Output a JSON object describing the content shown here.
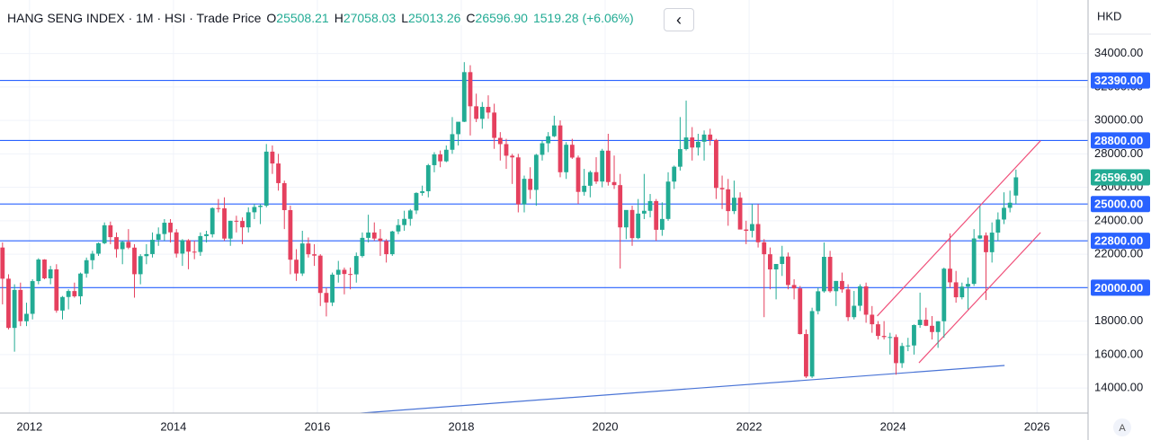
{
  "chart_data": {
    "type": "candlestick",
    "legend": {
      "symbol": "HANG SENG INDEX · 1M · HSI · Trade Price",
      "open_label": "O",
      "open": 25508.21,
      "high_label": "H",
      "high": 27058.03,
      "low_label": "L",
      "low": 25013.26,
      "close_label": "C",
      "close": {
        "value": 26596.9,
        "label": "26596.90"
      },
      "change": "1519.28 (+6.06%)"
    },
    "currency": "HKD",
    "auto_button": "A",
    "up_color": "#22ab94",
    "down_color": "#e5405e",
    "x": [
      "2011-08",
      "2011-09",
      "2011-10",
      "2011-11",
      "2011-12",
      "2012-01",
      "2012-02",
      "2012-03",
      "2012-04",
      "2012-05",
      "2012-06",
      "2012-07",
      "2012-08",
      "2012-09",
      "2012-10",
      "2012-11",
      "2012-12",
      "2013-01",
      "2013-02",
      "2013-03",
      "2013-04",
      "2013-05",
      "2013-06",
      "2013-07",
      "2013-08",
      "2013-09",
      "2013-10",
      "2013-11",
      "2013-12",
      "2014-01",
      "2014-02",
      "2014-03",
      "2014-04",
      "2014-05",
      "2014-06",
      "2014-07",
      "2014-08",
      "2014-09",
      "2014-10",
      "2014-11",
      "2014-12",
      "2015-01",
      "2015-02",
      "2015-03",
      "2015-04",
      "2015-05",
      "2015-06",
      "2015-07",
      "2015-08",
      "2015-09",
      "2015-10",
      "2015-11",
      "2015-12",
      "2016-01",
      "2016-02",
      "2016-03",
      "2016-04",
      "2016-05",
      "2016-06",
      "2016-07",
      "2016-08",
      "2016-09",
      "2016-10",
      "2016-11",
      "2016-12",
      "2017-01",
      "2017-02",
      "2017-03",
      "2017-04",
      "2017-05",
      "2017-06",
      "2017-07",
      "2017-08",
      "2017-09",
      "2017-10",
      "2017-11",
      "2017-12",
      "2018-01",
      "2018-02",
      "2018-03",
      "2018-04",
      "2018-05",
      "2018-06",
      "2018-07",
      "2018-08",
      "2018-09",
      "2018-10",
      "2018-11",
      "2018-12",
      "2019-01",
      "2019-02",
      "2019-03",
      "2019-04",
      "2019-05",
      "2019-06",
      "2019-07",
      "2019-08",
      "2019-09",
      "2019-10",
      "2019-11",
      "2019-12",
      "2020-01",
      "2020-02",
      "2020-03",
      "2020-04",
      "2020-05",
      "2020-06",
      "2020-07",
      "2020-08",
      "2020-09",
      "2020-10",
      "2020-11",
      "2020-12",
      "2021-01",
      "2021-02",
      "2021-03",
      "2021-04",
      "2021-05",
      "2021-06",
      "2021-07",
      "2021-08",
      "2021-09",
      "2021-10",
      "2021-11",
      "2021-12",
      "2022-01",
      "2022-02",
      "2022-03",
      "2022-04",
      "2022-05",
      "2022-06",
      "2022-07",
      "2022-08",
      "2022-09",
      "2022-10",
      "2022-11",
      "2022-12",
      "2023-01",
      "2023-02",
      "2023-03",
      "2023-04",
      "2023-05",
      "2023-06",
      "2023-07",
      "2023-08",
      "2023-09",
      "2023-10",
      "2023-11",
      "2023-12",
      "2024-01",
      "2024-02",
      "2024-03",
      "2024-04",
      "2024-05",
      "2024-06",
      "2024-07",
      "2024-08",
      "2024-09",
      "2024-10",
      "2024-11",
      "2024-12",
      "2025-01",
      "2025-02",
      "2025-03",
      "2025-04",
      "2025-05",
      "2025-06",
      "2025-07",
      "2025-08",
      "2025-09"
    ],
    "open": [
      22398,
      20535,
      17592,
      19864,
      17989,
      18434,
      20390,
      21680,
      20556,
      21094,
      18630,
      19441,
      19796,
      19483,
      20840,
      21642,
      22030,
      22657,
      23730,
      23020,
      22300,
      22737,
      22392,
      20803,
      21883,
      22008,
      22860,
      23206,
      23881,
      23306,
      22035,
      22837,
      22151,
      22133,
      23082,
      23191,
      24757,
      24742,
      22933,
      23998,
      23987,
      23605,
      24507,
      24823,
      24901,
      28133,
      27424,
      26250,
      24636,
      21670,
      20846,
      22640,
      21996,
      21914,
      19683,
      19112,
      20777,
      21067,
      20815,
      20794,
      21891,
      22977,
      23297,
      22935,
      22790,
      22001,
      23361,
      23741,
      24112,
      24615,
      25661,
      25765,
      27324,
      27970,
      27554,
      28246,
      29177,
      29919,
      32887,
      30845,
      30093,
      30808,
      30469,
      28955,
      28583,
      27889,
      27789,
      24980,
      26507,
      25846,
      27942,
      28633,
      29051,
      29699,
      26901,
      28543,
      27778,
      25725,
      26092,
      26907,
      26346,
      28190,
      26313,
      26130,
      23603,
      24644,
      22961,
      24427,
      24595,
      25177,
      23459,
      24107,
      26341,
      27231,
      28284,
      28980,
      28378,
      28725,
      29152,
      28828,
      25961,
      25879,
      24576,
      25377,
      23475,
      23398,
      23802,
      22713,
      21997,
      21089,
      21415,
      21860,
      20157,
      19955,
      17223,
      14687,
      18597,
      19781,
      21842,
      19786,
      20400,
      19895,
      18234,
      18916,
      20079,
      18382,
      17810,
      17112,
      17043,
      17047,
      15485,
      16511,
      16541,
      17763,
      18080,
      17719,
      17345,
      17989,
      21134,
      20317,
      19424,
      20060,
      20225,
      22941,
      23120,
      22119,
      23290,
      24072,
      24773,
      25508.21
    ],
    "high": [
      22700,
      20800,
      20200,
      20300,
      19100,
      20500,
      21760,
      21700,
      21300,
      21400,
      19500,
      19900,
      20300,
      20900,
      21800,
      22200,
      22700,
      23900,
      23950,
      23300,
      22800,
      23500,
      22600,
      22000,
      22600,
      23300,
      23600,
      24100,
      24100,
      23500,
      22900,
      22900,
      22800,
      23300,
      23400,
      24800,
      25300,
      25400,
      24000,
      24300,
      24200,
      24800,
      25000,
      25000,
      28588,
      28500,
      28000,
      26400,
      24900,
      22300,
      23400,
      23000,
      22600,
      22000,
      20000,
      20900,
      21600,
      21200,
      21200,
      22100,
      23300,
      24360,
      23900,
      23500,
      22900,
      23400,
      24100,
      24600,
      24700,
      25700,
      26100,
      27400,
      28100,
      28200,
      28500,
      30200,
      29900,
      33484,
      33300,
      31600,
      31100,
      31500,
      31000,
      29300,
      28900,
      28000,
      28000,
      26700,
      27200,
      28000,
      28800,
      29300,
      30280,
      30000,
      28700,
      28900,
      27900,
      27100,
      27000,
      27800,
      28300,
      29200,
      27900,
      26800,
      24600,
      24900,
      25300,
      26800,
      25600,
      25300,
      25100,
      26900,
      27300,
      30200,
      31183,
      29600,
      29200,
      29400,
      29500,
      28900,
      26700,
      26500,
      26400,
      25700,
      24000,
      25000,
      25000,
      22900,
      22400,
      21300,
      22500,
      22100,
      20500,
      20100,
      17500,
      18800,
      20000,
      22700,
      22200,
      20400,
      20900,
      20200,
      19800,
      20200,
      20300,
      18900,
      18000,
      18000,
      17300,
      17200,
      16700,
      17000,
      17800,
      19700,
      18800,
      18300,
      18000,
      21200,
      23241,
      21000,
      20300,
      20600,
      23500,
      24874,
      23300,
      23900,
      24500,
      25700,
      25800,
      27058.03
    ],
    "low": [
      19000,
      17500,
      16170,
      17700,
      17700,
      18100,
      20200,
      20500,
      20200,
      18500,
      18100,
      18700,
      19400,
      19000,
      20600,
      21100,
      21900,
      22600,
      22600,
      21800,
      21400,
      22300,
      19400,
      20200,
      21400,
      21800,
      22500,
      22800,
      22700,
      21800,
      21300,
      21100,
      21700,
      21900,
      22700,
      23000,
      24500,
      22800,
      22500,
      23300,
      22600,
      23300,
      24100,
      23800,
      24800,
      26800,
      25800,
      23500,
      20800,
      20400,
      20700,
      21800,
      21300,
      18900,
      18279,
      18900,
      20300,
      19600,
      19900,
      20300,
      21800,
      22700,
      22800,
      21900,
      21500,
      21900,
      23200,
      23400,
      23700,
      24400,
      25500,
      25400,
      26900,
      27200,
      27500,
      28000,
      28500,
      29900,
      29100,
      29900,
      29500,
      30100,
      28300,
      27600,
      27100,
      26200,
      24500,
      24500,
      25300,
      24900,
      27600,
      28100,
      29000,
      26600,
      26500,
      27700,
      25000,
      25500,
      25400,
      26200,
      26000,
      26100,
      25900,
      21139,
      22900,
      22500,
      22900,
      24100,
      24200,
      22800,
      23100,
      24000,
      25900,
      27000,
      28200,
      27600,
      27900,
      27600,
      28500,
      25300,
      24700,
      23700,
      24400,
      23500,
      22600,
      23000,
      22400,
      18235,
      19900,
      19300,
      20700,
      19900,
      19300,
      17200,
      14597,
      14600,
      18400,
      19700,
      19700,
      18900,
      19700,
      18000,
      18100,
      18600,
      17900,
      17300,
      16900,
      16900,
      16000,
      14794,
      15200,
      16200,
      16000,
      17600,
      17700,
      16900,
      16400,
      17000,
      20000,
      19100,
      19300,
      18700,
      20100,
      22900,
      19260,
      21500,
      22800,
      23800,
      24500,
      25013.26
    ],
    "close": [
      20535,
      17592,
      19864,
      17989,
      18434,
      20390,
      21680,
      20556,
      21094,
      18630,
      19441,
      19796,
      19483,
      20840,
      21642,
      22030,
      22657,
      23730,
      23020,
      22300,
      22737,
      22392,
      20803,
      21883,
      22008,
      22860,
      23206,
      23881,
      23306,
      22035,
      22837,
      22151,
      22133,
      23082,
      23191,
      24757,
      24742,
      22933,
      23998,
      23987,
      23605,
      24507,
      24823,
      24901,
      28133,
      27424,
      26250,
      24636,
      21670,
      20846,
      22640,
      21996,
      21914,
      19683,
      19112,
      20777,
      21067,
      20815,
      20794,
      21891,
      22977,
      23297,
      22935,
      22790,
      22001,
      23361,
      23741,
      24112,
      24615,
      25661,
      25765,
      27324,
      27970,
      27554,
      28246,
      29177,
      29919,
      32887,
      30845,
      30093,
      30808,
      30469,
      28955,
      28583,
      27889,
      27789,
      24980,
      26507,
      25846,
      27942,
      28633,
      29051,
      29699,
      26901,
      28543,
      27778,
      25725,
      26092,
      26907,
      26346,
      28190,
      26313,
      26130,
      23603,
      24644,
      22961,
      24427,
      24595,
      25177,
      23459,
      24107,
      26341,
      27231,
      28284,
      28980,
      28378,
      28725,
      29152,
      28828,
      25961,
      25879,
      24576,
      25377,
      23475,
      23398,
      23802,
      22713,
      21997,
      21089,
      21415,
      21860,
      20157,
      19955,
      17223,
      14687,
      18597,
      19781,
      21842,
      19786,
      20400,
      19895,
      18234,
      18916,
      20079,
      18382,
      17810,
      17112,
      17043,
      17047,
      15485,
      16511,
      16541,
      17763,
      18080,
      17719,
      17345,
      17989,
      21134,
      20317,
      19424,
      20060,
      20225,
      22941,
      23120,
      22119,
      23290,
      24072,
      24773,
      25078,
      26596.9
    ],
    "xlim": [
      2011.59,
      2026.71
    ],
    "xticks": [
      2012,
      2014,
      2016,
      2018,
      2020,
      2022,
      2024,
      2026
    ],
    "ylim": [
      12500,
      37200
    ],
    "yticks": [
      {
        "value": 14000,
        "label": "14000.00"
      },
      {
        "value": 16000,
        "label": "16000.00"
      },
      {
        "value": 18000,
        "label": "18000.00"
      },
      {
        "value": 20000,
        "label": "20000.00"
      },
      {
        "value": 22000,
        "label": "22000.00"
      },
      {
        "value": 24000,
        "label": "24000.00"
      },
      {
        "value": 26000,
        "label": "26000.00"
      },
      {
        "value": 28000,
        "label": "28000.00"
      },
      {
        "value": 30000,
        "label": "30000.00"
      },
      {
        "value": 32000,
        "label": "32000.00"
      },
      {
        "value": 34000,
        "label": "34000.00"
      }
    ],
    "grid": true,
    "levels": {
      "color": "#2962ff",
      "values": [
        {
          "value": 32390,
          "label": "32390.00"
        },
        {
          "value": 28800,
          "label": "28800.00"
        },
        {
          "value": 25000,
          "label": "25000.00"
        },
        {
          "value": 22800,
          "label": "22800.00"
        },
        {
          "value": 20000,
          "label": "20000.00"
        }
      ]
    },
    "trendlines": [
      {
        "color": "#4a74d6",
        "x": [
          2016.59,
          2025.55
        ],
        "y": [
          12495,
          15344
        ]
      },
      {
        "color": "#f0507a",
        "x": [
          2023.78,
          2026.05
        ],
        "y": [
          18301,
          28785
        ]
      },
      {
        "color": "#f0507a",
        "x": [
          2024.36,
          2026.05
        ],
        "y": [
          15505,
          23301
        ]
      }
    ]
  }
}
